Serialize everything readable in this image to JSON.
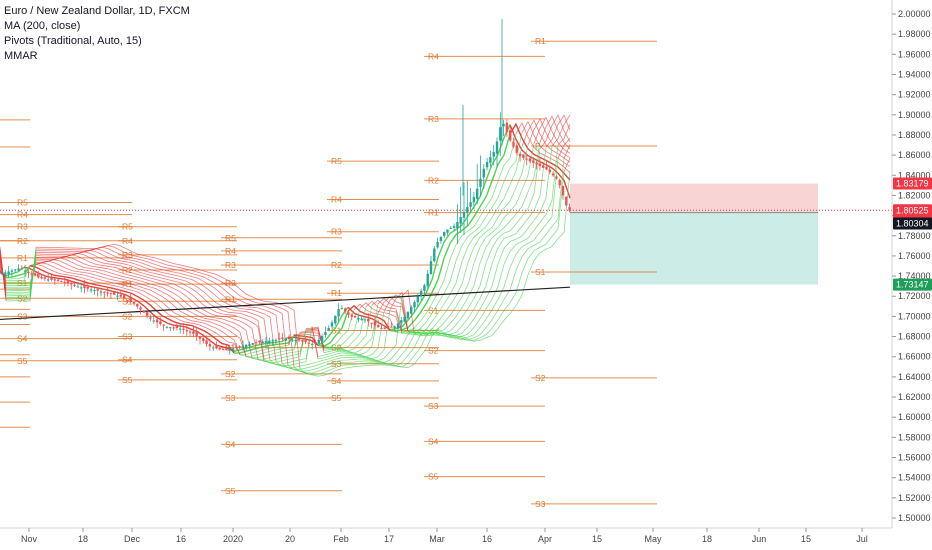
{
  "legend": {
    "symbol": "Euro / New Zealand Dollar, 1D, FXCM",
    "ma": "MA (200, close)",
    "pivots": "Pivots (Traditional, Auto, 15)",
    "mmar": "MMAR"
  },
  "colors": {
    "up": "#26a69a",
    "down": "#ef5350",
    "pivot": "#e0792f",
    "ribbon_red": "#e53935",
    "ribbon_green": "#43d14a",
    "ma200": "#222222",
    "stop_zone": "#f8c9c9",
    "target_zone": "#bfe9e1",
    "badge_red": "#f23645",
    "badge_dark": "#131722",
    "badge_green": "#1f9e5a"
  },
  "chart_data": {
    "type": "candlestick",
    "title": "Euro / New Zealand Dollar, 1D, FXCM",
    "ylim": [
      1.49,
      2.005
    ],
    "y_ticks": [
      "2.00000",
      "1.98000",
      "1.96000",
      "1.94000",
      "1.92000",
      "1.90000",
      "1.88000",
      "1.86000",
      "1.84000",
      "1.82000",
      "1.80000",
      "1.78000",
      "1.76000",
      "1.74000",
      "1.72000",
      "1.70000",
      "1.68000",
      "1.66000",
      "1.64000",
      "1.62000",
      "1.60000",
      "1.58000",
      "1.56000",
      "1.54000",
      "1.52000",
      "1.50000"
    ],
    "x_ticks": [
      "Nov",
      "18",
      "Dec",
      "16",
      "2020",
      "20",
      "Feb",
      "17",
      "Mar",
      "16",
      "Apr",
      "15",
      "May",
      "18",
      "Jun",
      "15",
      "Jul"
    ],
    "price_badges": [
      {
        "value": "1.83179",
        "role": "stop"
      },
      {
        "value": "1.80525",
        "role": "last"
      },
      {
        "value": "02:36:04",
        "role": "countdown"
      },
      {
        "value": "1.80304",
        "role": "entry"
      },
      {
        "value": "1.73147",
        "role": "target"
      }
    ],
    "position": {
      "entry": 1.803,
      "stop": 1.8318,
      "target": 1.7315,
      "x_from": "Apr 6",
      "x_to": "Jun 17"
    },
    "ma200": [
      [
        0,
        1.697
      ],
      [
        570,
        1.729
      ]
    ],
    "ribbon_end": {
      "green_top": 1.812,
      "green_bottom": 1.764
    },
    "close_path": [
      [
        0,
        1.742
      ],
      [
        20,
        1.748
      ],
      [
        40,
        1.738
      ],
      [
        60,
        1.735
      ],
      [
        80,
        1.729
      ],
      [
        100,
        1.725
      ],
      [
        120,
        1.72
      ],
      [
        135,
        1.712
      ],
      [
        150,
        1.698
      ],
      [
        165,
        1.69
      ],
      [
        180,
        1.688
      ],
      [
        195,
        1.682
      ],
      [
        210,
        1.67
      ],
      [
        225,
        1.666
      ],
      [
        240,
        1.67
      ],
      [
        255,
        1.674
      ],
      [
        270,
        1.676
      ],
      [
        285,
        1.678
      ],
      [
        300,
        1.676
      ],
      [
        315,
        1.672
      ],
      [
        330,
        1.69
      ],
      [
        340,
        1.71
      ],
      [
        350,
        1.7
      ],
      [
        365,
        1.697
      ],
      [
        380,
        1.688
      ],
      [
        395,
        1.69
      ],
      [
        405,
        1.7
      ],
      [
        415,
        1.715
      ],
      [
        425,
        1.732
      ],
      [
        435,
        1.77
      ],
      [
        445,
        1.785
      ],
      [
        455,
        1.79
      ],
      [
        465,
        1.805
      ],
      [
        475,
        1.82
      ],
      [
        485,
        1.85
      ],
      [
        495,
        1.865
      ],
      [
        502,
        1.895
      ],
      [
        510,
        1.875
      ],
      [
        518,
        1.86
      ],
      [
        528,
        1.855
      ],
      [
        538,
        1.85
      ],
      [
        548,
        1.845
      ],
      [
        558,
        1.835
      ],
      [
        568,
        1.805
      ]
    ],
    "pivot_sets": [
      {
        "x0": 0,
        "x1": 30,
        "levels": [
          {
            "label": "",
            "value": 1.895
          },
          {
            "label": "",
            "value": 1.868
          },
          {
            "label": "",
            "value": 1.775
          },
          {
            "label": "",
            "value": 1.727
          },
          {
            "label": "",
            "value": 1.707
          },
          {
            "label": "",
            "value": 1.692
          },
          {
            "label": "",
            "value": 1.662
          },
          {
            "label": "",
            "value": 1.64
          },
          {
            "label": "",
            "value": 1.615
          },
          {
            "label": "",
            "value": 1.59
          }
        ]
      },
      {
        "x0": 0,
        "x1": 132,
        "levels": [
          {
            "label": "R5",
            "value": 1.813
          },
          {
            "label": "R4",
            "value": 1.801
          },
          {
            "label": "R3",
            "value": 1.789
          },
          {
            "label": "R2",
            "value": 1.775
          },
          {
            "label": "R1",
            "value": 1.758
          },
          {
            "label": "S1",
            "value": 1.733
          },
          {
            "label": "S2",
            "value": 1.718
          },
          {
            "label": "S3",
            "value": 1.7
          },
          {
            "label": "S4",
            "value": 1.678
          },
          {
            "label": "S5",
            "value": 1.656
          }
        ]
      },
      {
        "x0": 118,
        "x1": 237,
        "levels": [
          {
            "label": "R5",
            "value": 1.789
          },
          {
            "label": "R4",
            "value": 1.775
          },
          {
            "label": "R3",
            "value": 1.761
          },
          {
            "label": "R2",
            "value": 1.746
          },
          {
            "label": "R1",
            "value": 1.732
          },
          {
            "label": "S1",
            "value": 1.715
          },
          {
            "label": "S2",
            "value": 1.7
          },
          {
            "label": "S3",
            "value": 1.68
          },
          {
            "label": "S4",
            "value": 1.657
          },
          {
            "label": "S5",
            "value": 1.637
          }
        ]
      },
      {
        "x0": 221,
        "x1": 342,
        "levels": [
          {
            "label": "R5",
            "value": 1.778
          },
          {
            "label": "R4",
            "value": 1.765
          },
          {
            "label": "R3",
            "value": 1.751
          },
          {
            "label": "R2",
            "value": 1.733
          },
          {
            "label": "R1",
            "value": 1.717
          },
          {
            "label": "S1",
            "value": 1.669
          },
          {
            "label": "S2",
            "value": 1.643
          },
          {
            "label": "S3",
            "value": 1.619
          },
          {
            "label": "S4",
            "value": 1.573
          },
          {
            "label": "S5",
            "value": 1.527
          }
        ]
      },
      {
        "x0": 327,
        "x1": 439,
        "levels": [
          {
            "label": "R5",
            "value": 1.854
          },
          {
            "label": "R4",
            "value": 1.816
          },
          {
            "label": "R3",
            "value": 1.784
          },
          {
            "label": "R2",
            "value": 1.751
          },
          {
            "label": "R1",
            "value": 1.723
          },
          {
            "label": "S1",
            "value": 1.686
          },
          {
            "label": "S2",
            "value": 1.669
          },
          {
            "label": "S3",
            "value": 1.653
          },
          {
            "label": "S4",
            "value": 1.636
          },
          {
            "label": "S5",
            "value": 1.619
          }
        ]
      },
      {
        "x0": 424,
        "x1": 545,
        "levels": [
          {
            "label": "R4",
            "value": 1.958
          },
          {
            "label": "R3",
            "value": 1.896
          },
          {
            "label": "R2",
            "value": 1.835
          },
          {
            "label": "R1",
            "value": 1.803
          },
          {
            "label": "S1",
            "value": 1.706
          },
          {
            "label": "S2",
            "value": 1.666
          },
          {
            "label": "S3",
            "value": 1.611
          },
          {
            "label": "S4",
            "value": 1.576
          },
          {
            "label": "S5",
            "value": 1.541
          }
        ]
      },
      {
        "x0": 531,
        "x1": 657,
        "levels": [
          {
            "label": "R1",
            "value": 1.973
          },
          {
            "label": "P",
            "value": 1.869
          },
          {
            "label": "S1",
            "value": 1.744
          },
          {
            "label": "S2",
            "value": 1.639
          },
          {
            "label": "S3",
            "value": 1.514
          }
        ]
      }
    ]
  }
}
